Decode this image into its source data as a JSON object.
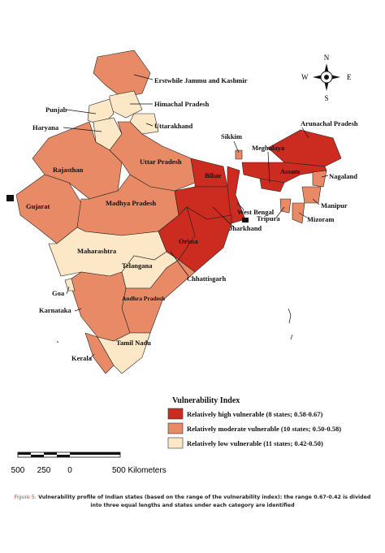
{
  "states": [
    "Erstwhile Jammu and Kashmir",
    "Himachal Pradesh",
    "Punjab",
    "Haryana",
    "Uttarakhand",
    "Sikkim",
    "Arunachal Pradesh",
    "Meghalaya",
    "Rajasthan",
    "Uttar Pradesh",
    "Bihar",
    "Assam",
    "Nagaland",
    "Gujarat",
    "Madhya Pradesh",
    "Manipur",
    "Tripura",
    "Mizoram",
    "West Bengal",
    "Orissa",
    "Jharkhand",
    "Maharashtra",
    "Telangana",
    "Chhattisgarh",
    "Goa",
    "Andhra Pradesh",
    "Karnataka",
    "Tamil Nadu",
    "Kerala"
  ],
  "compass": {
    "north": "N",
    "south": "S",
    "east": "E",
    "west": "W"
  },
  "legend": {
    "title": "Vulnerability Index",
    "items": [
      {
        "label": "Relatively high vulnerable (8 states; 0.58-0.67)",
        "color": "#cc2b1f"
      },
      {
        "label": "Relatively moderate vulnerable (10 states; 0.50-0.58)",
        "color": "#e98a67"
      },
      {
        "label": "Relatively low vulnerable (11 states; 0.42-0.50)",
        "color": "#fce7c6"
      }
    ]
  },
  "scale": {
    "labels": [
      "500",
      "250",
      "0",
      "500 Kilometers"
    ]
  },
  "caption": {
    "label": "Figure 5:",
    "text": "Vulnerability profile of Indian states (based on the range of the vulnerability index): the range 0.67-0.42 is divided into three equal lengths and states under each category are identified"
  }
}
